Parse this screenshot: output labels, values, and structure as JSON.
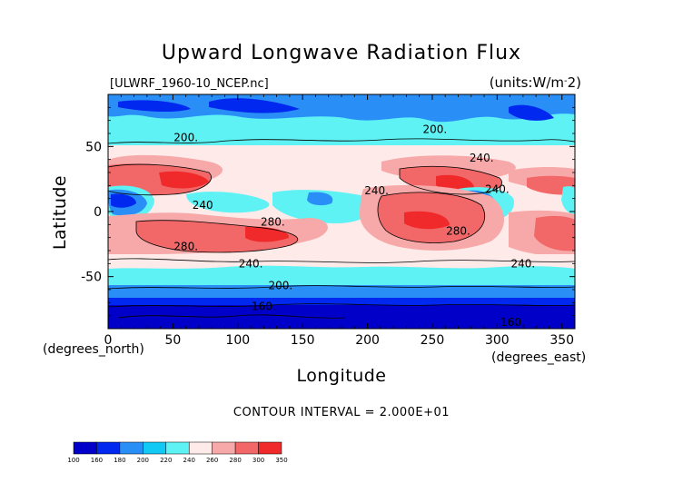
{
  "title": "Upward Longwave Radiation Flux",
  "source_label": "[ULWRF_1960-10_NCEP.nc]",
  "units_label": "(units:W/m^2)",
  "contour_interval_text": "CONTOUR INTERVAL = 2.000E+01",
  "chart_data": {
    "type": "heatmap",
    "title": "Upward Longwave Radiation Flux",
    "xlabel": "Longitude",
    "ylabel": "Latitude",
    "x_unit_label": "(degrees_east)",
    "y_unit_label": "(degrees_north)",
    "xlim": [
      0,
      360
    ],
    "ylim": [
      -90,
      90
    ],
    "x_ticks": [
      0,
      50,
      100,
      150,
      200,
      250,
      300,
      350
    ],
    "y_ticks": [
      -50,
      0,
      50
    ],
    "contour_interval": 20,
    "contour_labels": [
      {
        "text": "200.",
        "lon": 60,
        "lat": 57
      },
      {
        "text": "200.",
        "lon": 252,
        "lat": 63
      },
      {
        "text": "240.",
        "lon": 288,
        "lat": 41
      },
      {
        "text": "240.",
        "lon": 300,
        "lat": 17
      },
      {
        "text": "240.",
        "lon": 207,
        "lat": 16
      },
      {
        "text": "240",
        "lon": 73,
        "lat": 5
      },
      {
        "text": "280.",
        "lon": 127,
        "lat": -8
      },
      {
        "text": "280.",
        "lon": 270,
        "lat": -15
      },
      {
        "text": "280.",
        "lon": 60,
        "lat": -27
      },
      {
        "text": "240.",
        "lon": 110,
        "lat": -40
      },
      {
        "text": "240.",
        "lon": 320,
        "lat": -40
      },
      {
        "text": "200.",
        "lon": 133,
        "lat": -57
      },
      {
        "text": "160.",
        "lon": 120,
        "lat": -73
      },
      {
        "text": "160.",
        "lon": 312,
        "lat": -85
      }
    ],
    "colorbar": {
      "ticks": [
        "100",
        "160",
        "180",
        "200",
        "220",
        "240",
        "260",
        "280",
        "300",
        "350"
      ],
      "colors": [
        "#0000c8",
        "#0028ee",
        "#2a8ef7",
        "#12c8f4",
        "#5ef2f4",
        "#ffeaea",
        "#f7a8a8",
        "#f26868",
        "#f02a2a"
      ]
    }
  }
}
